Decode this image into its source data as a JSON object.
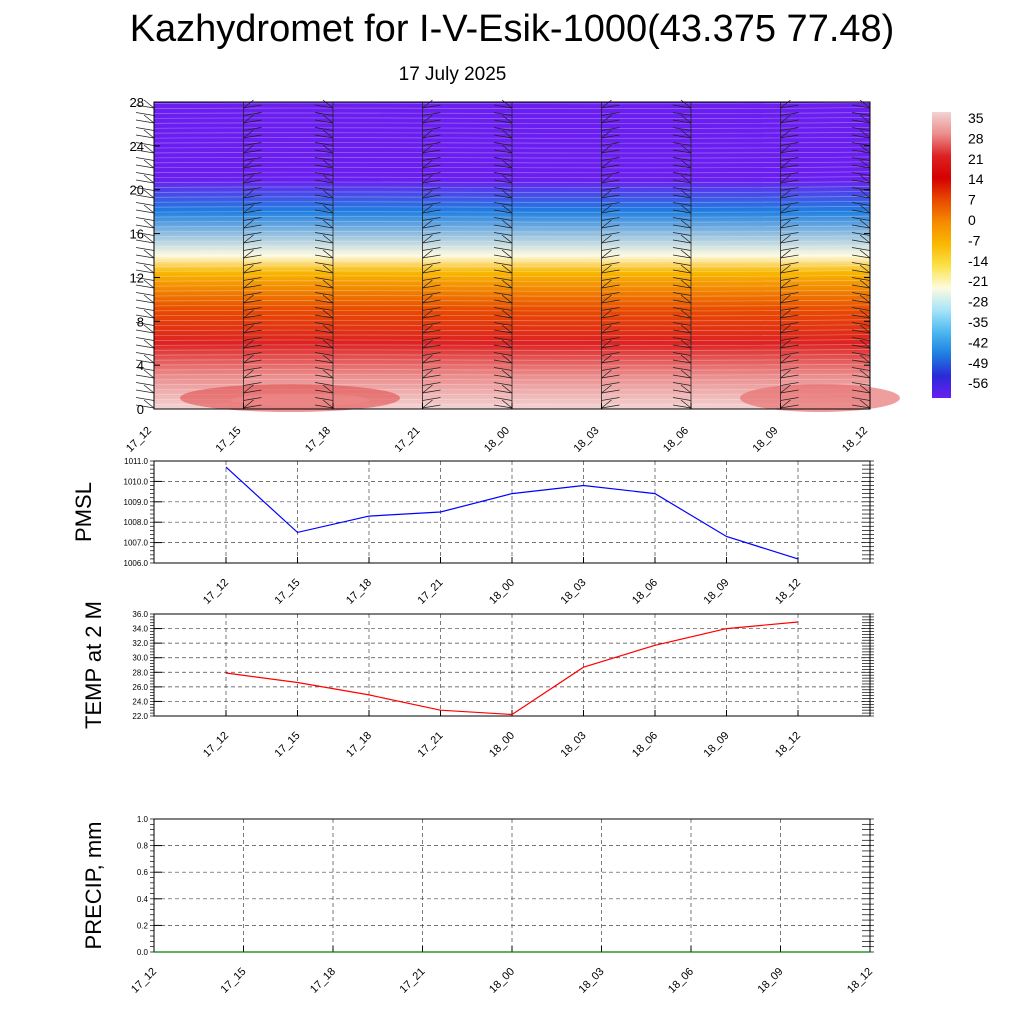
{
  "title": "Kazhydromet for I-V-Esik-1000(43.375 77.48)",
  "subtitle": "17 July 2025",
  "chart_data": [
    {
      "type": "heatmap",
      "description_axis": "height",
      "x_ticks": [
        "17_12",
        "17_15",
        "17_18",
        "17_21",
        "18_00",
        "18_03",
        "18_06",
        "18_09",
        "18_12"
      ],
      "y_ticks": [
        0,
        4,
        8,
        12,
        16,
        20,
        24,
        28
      ],
      "ylim": [
        0,
        28
      ],
      "colorbar_labels": [
        "35",
        "28",
        "21",
        "14",
        "7",
        "0",
        "-7",
        "-14",
        "-21",
        "-28",
        "-35",
        "-42",
        "-49",
        "-56"
      ],
      "colorbar_colors": [
        "#f3d3d3",
        "#eb8d8d",
        "#dd2222",
        "#d40000",
        "#e84a00",
        "#f58a00",
        "#f9b800",
        "#fbe24a",
        "#fdfbe0",
        "#a8e4f8",
        "#4cb8f0",
        "#1f7fe0",
        "#2a2ad8",
        "#6a1ef0"
      ],
      "levels": [
        {
          "y": 0,
          "value": 32
        },
        {
          "y": 3,
          "value": 26
        },
        {
          "y": 6,
          "value": 20
        },
        {
          "y": 9,
          "value": 10
        },
        {
          "y": 12.5,
          "value": -8
        },
        {
          "y": 14,
          "value": -22
        },
        {
          "y": 18,
          "value": -40
        },
        {
          "y": 21,
          "value": -60
        },
        {
          "y": 22,
          "value": -58
        },
        {
          "y": 28,
          "value": -56
        }
      ],
      "wind_barb_columns": [
        "17_12",
        "17_15",
        "17_18",
        "17_21",
        "18_00",
        "18_03",
        "18_06",
        "18_09",
        "18_12"
      ],
      "grid": false
    },
    {
      "type": "line",
      "ylabel": "PMSL",
      "x": [
        "17_12",
        "17_15",
        "17_18",
        "17_21",
        "18_00",
        "18_03",
        "18_06",
        "18_09",
        "18_12"
      ],
      "values": [
        1010.7,
        1007.5,
        1008.3,
        1008.5,
        1009.4,
        1009.8,
        1009.4,
        1007.3,
        1006.2
      ],
      "ylim": [
        1006.0,
        1011.0
      ],
      "y_ticks": [
        "1006.0",
        "1007.0",
        "1008.0",
        "1009.0",
        "1010.0",
        "1011.0"
      ],
      "color": "#0000ff",
      "grid": true
    },
    {
      "type": "line",
      "ylabel": "TEMP at 2 M",
      "x": [
        "17_12",
        "17_15",
        "17_18",
        "17_21",
        "18_00",
        "18_03",
        "18_06",
        "18_09",
        "18_12"
      ],
      "values": [
        27.9,
        26.6,
        24.9,
        22.8,
        22.2,
        28.7,
        31.7,
        34.0,
        34.9
      ],
      "ylim": [
        22.0,
        36.0
      ],
      "y_ticks": [
        "22.0",
        "24.0",
        "26.0",
        "28.0",
        "30.0",
        "32.0",
        "34.0",
        "36.0"
      ],
      "color": "#ff0000",
      "grid": true
    },
    {
      "type": "line",
      "ylabel": "PRECIP, mm",
      "x": [
        "17_12",
        "17_15",
        "17_18",
        "17_21",
        "18_00",
        "18_03",
        "18_06",
        "18_09",
        "18_12"
      ],
      "values": [
        0,
        0,
        0,
        0,
        0,
        0,
        0,
        0,
        0
      ],
      "ylim": [
        0.0,
        1.0
      ],
      "y_ticks": [
        "0.0",
        "0.2",
        "0.4",
        "0.6",
        "0.8",
        "1.0"
      ],
      "color": "#008000",
      "grid": true
    }
  ]
}
